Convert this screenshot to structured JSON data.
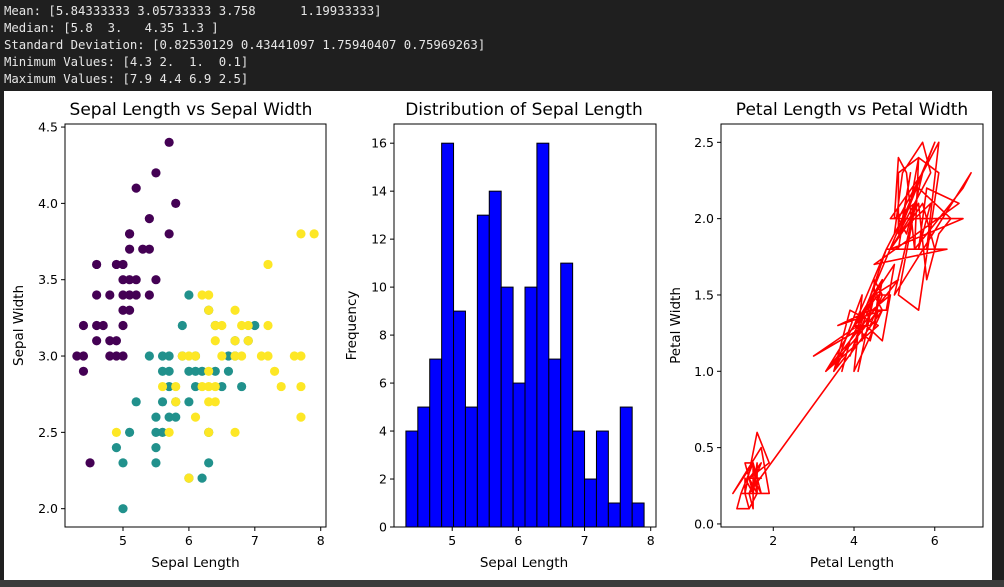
{
  "console": {
    "lines": [
      "Mean: [5.84333333 3.05733333 3.758      1.19933333]",
      "Median: [5.8  3.   4.35 1.3 ]",
      "Standard Deviation: [0.82530129 0.43441097 1.75940407 0.75969263]",
      "Minimum Values: [4.3 2.  1.  0.1]",
      "Maximum Values: [7.9 4.4 6.9 2.5]"
    ]
  },
  "chart_data": [
    {
      "type": "scatter",
      "title": "Sepal Length vs Sepal Width",
      "xlabel": "Sepal Length",
      "ylabel": "Sepal Width",
      "xlim": [
        4.12,
        8.08
      ],
      "ylim": [
        1.88,
        4.52
      ],
      "xticks": [
        5,
        6,
        7,
        8
      ],
      "yticks": [
        2.0,
        2.5,
        3.0,
        3.5,
        4.0,
        4.5
      ],
      "ytick_labels": [
        "2.0",
        "2.5",
        "3.0",
        "3.5",
        "4.0",
        "4.5"
      ],
      "colors": {
        "0": "#440154",
        "1": "#21918c",
        "2": "#fde725"
      },
      "points": [
        [
          4.3,
          3.0,
          0
        ],
        [
          4.4,
          2.9,
          0
        ],
        [
          4.4,
          3.0,
          0
        ],
        [
          4.4,
          3.2,
          0
        ],
        [
          4.5,
          2.3,
          0
        ],
        [
          4.6,
          3.1,
          0
        ],
        [
          4.6,
          3.2,
          0
        ],
        [
          4.6,
          3.4,
          0
        ],
        [
          4.6,
          3.6,
          0
        ],
        [
          4.7,
          3.2,
          0
        ],
        [
          4.8,
          3.0,
          0
        ],
        [
          4.8,
          3.1,
          0
        ],
        [
          4.8,
          3.4,
          0
        ],
        [
          4.9,
          3.0,
          0
        ],
        [
          4.9,
          3.1,
          0
        ],
        [
          4.9,
          3.6,
          0
        ],
        [
          5.0,
          3.0,
          0
        ],
        [
          5.0,
          3.2,
          0
        ],
        [
          5.0,
          3.3,
          0
        ],
        [
          5.0,
          3.4,
          0
        ],
        [
          5.0,
          3.5,
          0
        ],
        [
          5.0,
          3.6,
          0
        ],
        [
          5.1,
          3.3,
          0
        ],
        [
          5.1,
          3.4,
          0
        ],
        [
          5.1,
          3.5,
          0
        ],
        [
          5.1,
          3.7,
          0
        ],
        [
          5.1,
          3.8,
          0
        ],
        [
          5.1,
          3.8,
          0
        ],
        [
          5.2,
          3.4,
          0
        ],
        [
          5.2,
          3.5,
          0
        ],
        [
          5.2,
          4.1,
          0
        ],
        [
          5.3,
          3.7,
          0
        ],
        [
          5.4,
          3.4,
          0
        ],
        [
          5.4,
          3.7,
          0
        ],
        [
          5.4,
          3.9,
          0
        ],
        [
          5.5,
          3.5,
          0
        ],
        [
          5.5,
          4.2,
          0
        ],
        [
          5.7,
          3.8,
          0
        ],
        [
          5.7,
          4.4,
          0
        ],
        [
          5.8,
          4.0,
          0
        ],
        [
          4.9,
          2.4,
          1
        ],
        [
          5.0,
          2.0,
          1
        ],
        [
          5.0,
          2.3,
          1
        ],
        [
          5.1,
          2.5,
          1
        ],
        [
          5.2,
          2.7,
          1
        ],
        [
          5.4,
          3.0,
          1
        ],
        [
          5.5,
          2.3,
          1
        ],
        [
          5.5,
          2.4,
          1
        ],
        [
          5.5,
          2.5,
          1
        ],
        [
          5.5,
          2.6,
          1
        ],
        [
          5.6,
          2.5,
          1
        ],
        [
          5.6,
          2.7,
          1
        ],
        [
          5.6,
          2.9,
          1
        ],
        [
          5.6,
          3.0,
          1
        ],
        [
          5.7,
          2.6,
          1
        ],
        [
          5.7,
          2.8,
          1
        ],
        [
          5.7,
          2.9,
          1
        ],
        [
          5.7,
          3.0,
          1
        ],
        [
          5.8,
          2.6,
          1
        ],
        [
          5.8,
          2.7,
          1
        ],
        [
          5.9,
          3.0,
          1
        ],
        [
          5.9,
          3.2,
          1
        ],
        [
          6.0,
          2.2,
          1
        ],
        [
          6.0,
          2.7,
          1
        ],
        [
          6.0,
          2.9,
          1
        ],
        [
          6.0,
          3.4,
          1
        ],
        [
          6.1,
          2.8,
          1
        ],
        [
          6.1,
          2.9,
          1
        ],
        [
          6.1,
          3.0,
          1
        ],
        [
          6.2,
          2.2,
          1
        ],
        [
          6.2,
          2.9,
          1
        ],
        [
          6.3,
          2.3,
          1
        ],
        [
          6.3,
          2.5,
          1
        ],
        [
          6.3,
          3.3,
          1
        ],
        [
          6.4,
          2.9,
          1
        ],
        [
          6.4,
          3.2,
          1
        ],
        [
          6.5,
          2.8,
          1
        ],
        [
          6.6,
          2.9,
          1
        ],
        [
          6.6,
          3.0,
          1
        ],
        [
          6.7,
          3.0,
          1
        ],
        [
          6.7,
          3.1,
          1
        ],
        [
          6.8,
          2.8,
          1
        ],
        [
          6.9,
          3.1,
          1
        ],
        [
          7.0,
          3.2,
          1
        ],
        [
          4.9,
          2.5,
          2
        ],
        [
          5.6,
          2.8,
          2
        ],
        [
          5.7,
          2.5,
          2
        ],
        [
          5.8,
          2.7,
          2
        ],
        [
          5.8,
          2.8,
          2
        ],
        [
          5.9,
          3.0,
          2
        ],
        [
          6.0,
          2.2,
          2
        ],
        [
          6.0,
          3.0,
          2
        ],
        [
          6.1,
          2.6,
          2
        ],
        [
          6.1,
          3.0,
          2
        ],
        [
          6.2,
          2.8,
          2
        ],
        [
          6.2,
          3.4,
          2
        ],
        [
          6.3,
          2.5,
          2
        ],
        [
          6.3,
          2.7,
          2
        ],
        [
          6.3,
          2.8,
          2
        ],
        [
          6.3,
          2.9,
          2
        ],
        [
          6.3,
          3.3,
          2
        ],
        [
          6.3,
          3.4,
          2
        ],
        [
          6.4,
          2.7,
          2
        ],
        [
          6.4,
          2.8,
          2
        ],
        [
          6.4,
          3.1,
          2
        ],
        [
          6.4,
          3.2,
          2
        ],
        [
          6.5,
          3.0,
          2
        ],
        [
          6.5,
          3.2,
          2
        ],
        [
          6.7,
          2.5,
          2
        ],
        [
          6.7,
          3.0,
          2
        ],
        [
          6.7,
          3.1,
          2
        ],
        [
          6.7,
          3.3,
          2
        ],
        [
          6.8,
          3.0,
          2
        ],
        [
          6.8,
          3.2,
          2
        ],
        [
          6.9,
          3.1,
          2
        ],
        [
          6.9,
          3.2,
          2
        ],
        [
          7.1,
          3.0,
          2
        ],
        [
          7.2,
          3.0,
          2
        ],
        [
          7.2,
          3.2,
          2
        ],
        [
          7.2,
          3.6,
          2
        ],
        [
          7.3,
          2.9,
          2
        ],
        [
          7.4,
          2.8,
          2
        ],
        [
          7.6,
          3.0,
          2
        ],
        [
          7.7,
          2.6,
          2
        ],
        [
          7.7,
          2.8,
          2
        ],
        [
          7.7,
          3.0,
          2
        ],
        [
          7.7,
          3.8,
          2
        ],
        [
          7.9,
          3.8,
          2
        ]
      ]
    },
    {
      "type": "bar",
      "title": "Distribution of Sepal Length",
      "xlabel": "Sepal Length",
      "ylabel": "Frequency",
      "bins": 20,
      "bin_start": 4.3,
      "bin_end": 7.9,
      "values": [
        4,
        5,
        7,
        16,
        9,
        5,
        13,
        14,
        10,
        6,
        10,
        16,
        7,
        11,
        4,
        2,
        4,
        1,
        5,
        1
      ],
      "xlim": [
        4.12,
        8.08
      ],
      "ylim": [
        0,
        16.8
      ],
      "xticks": [
        5,
        6,
        7,
        8
      ],
      "yticks": [
        0,
        2,
        4,
        6,
        8,
        10,
        12,
        14,
        16
      ],
      "bar_color": "#0000ff",
      "edge_color": "#000000"
    },
    {
      "type": "line",
      "title": "Petal Length vs Petal Width",
      "xlabel": "Petal Length",
      "ylabel": "Petal Width",
      "xlim": [
        0.705,
        7.195
      ],
      "ylim": [
        -0.02,
        2.62
      ],
      "xticks": [
        2,
        4,
        6
      ],
      "yticks": [
        0.0,
        0.5,
        1.0,
        1.5,
        2.0,
        2.5
      ],
      "ytick_labels": [
        "0.0",
        "0.5",
        "1.0",
        "1.5",
        "2.0",
        "2.5"
      ],
      "line_color": "#ff0000",
      "x": [
        1.4,
        1.4,
        1.3,
        1.5,
        1.4,
        1.7,
        1.4,
        1.5,
        1.4,
        1.5,
        1.5,
        1.6,
        1.4,
        1.1,
        1.2,
        1.5,
        1.3,
        1.4,
        1.7,
        1.5,
        1.7,
        1.5,
        1.0,
        1.7,
        1.9,
        1.6,
        1.6,
        1.5,
        1.4,
        1.6,
        1.6,
        1.5,
        1.5,
        1.4,
        1.5,
        1.2,
        1.3,
        1.4,
        1.3,
        1.5,
        1.3,
        1.3,
        1.3,
        1.6,
        1.9,
        1.4,
        1.6,
        1.4,
        1.5,
        1.4,
        4.7,
        4.5,
        4.9,
        4.0,
        4.6,
        4.5,
        4.7,
        3.3,
        4.6,
        3.9,
        3.5,
        4.2,
        4.0,
        4.7,
        3.6,
        4.4,
        4.5,
        4.1,
        4.5,
        3.9,
        4.8,
        4.0,
        4.9,
        4.7,
        4.3,
        4.4,
        4.8,
        5.0,
        4.5,
        3.5,
        3.8,
        3.7,
        3.9,
        5.1,
        4.5,
        4.5,
        4.7,
        4.4,
        4.1,
        4.0,
        4.4,
        4.6,
        4.0,
        3.3,
        4.2,
        4.2,
        4.2,
        4.3,
        3.0,
        4.1,
        6.0,
        5.1,
        5.9,
        5.6,
        5.8,
        6.6,
        4.5,
        6.3,
        5.8,
        6.1,
        5.1,
        5.3,
        5.5,
        5.0,
        5.1,
        5.3,
        5.5,
        6.7,
        6.9,
        5.0,
        5.7,
        4.9,
        6.7,
        4.9,
        5.7,
        6.0,
        4.8,
        4.9,
        5.6,
        5.8,
        6.1,
        6.4,
        5.6,
        5.1,
        5.6,
        6.1,
        5.6,
        5.5,
        4.8,
        5.4,
        5.6,
        5.1,
        5.1,
        5.9,
        5.7,
        5.2,
        5.0,
        5.2,
        5.4,
        5.1
      ],
      "y": [
        0.2,
        0.2,
        0.2,
        0.2,
        0.2,
        0.4,
        0.3,
        0.2,
        0.2,
        0.1,
        0.2,
        0.2,
        0.1,
        0.1,
        0.2,
        0.4,
        0.4,
        0.3,
        0.3,
        0.3,
        0.2,
        0.4,
        0.2,
        0.5,
        0.2,
        0.2,
        0.4,
        0.2,
        0.2,
        0.2,
        0.2,
        0.4,
        0.1,
        0.2,
        0.2,
        0.2,
        0.2,
        0.1,
        0.2,
        0.2,
        0.3,
        0.3,
        0.2,
        0.6,
        0.4,
        0.3,
        0.2,
        0.2,
        0.2,
        0.2,
        1.4,
        1.5,
        1.5,
        1.3,
        1.5,
        1.3,
        1.6,
        1.0,
        1.3,
        1.4,
        1.0,
        1.5,
        1.0,
        1.4,
        1.3,
        1.4,
        1.5,
        1.0,
        1.5,
        1.1,
        1.8,
        1.3,
        1.5,
        1.2,
        1.3,
        1.4,
        1.4,
        1.7,
        1.5,
        1.0,
        1.1,
        1.0,
        1.2,
        1.6,
        1.5,
        1.6,
        1.5,
        1.3,
        1.3,
        1.3,
        1.2,
        1.4,
        1.2,
        1.0,
        1.3,
        1.2,
        1.3,
        1.3,
        1.1,
        1.3,
        2.5,
        1.9,
        2.1,
        1.8,
        2.2,
        2.1,
        1.7,
        1.8,
        1.8,
        2.5,
        2.0,
        1.9,
        2.1,
        2.0,
        2.4,
        2.3,
        1.8,
        2.2,
        2.3,
        1.5,
        2.3,
        2.0,
        2.0,
        1.8,
        2.1,
        1.8,
        1.8,
        1.8,
        2.1,
        1.6,
        1.9,
        2.0,
        2.2,
        1.5,
        1.4,
        2.3,
        2.4,
        1.8,
        1.8,
        2.1,
        2.4,
        2.3,
        1.9,
        2.3,
        2.5,
        2.3,
        1.9,
        2.0,
        2.3,
        1.8
      ]
    }
  ]
}
